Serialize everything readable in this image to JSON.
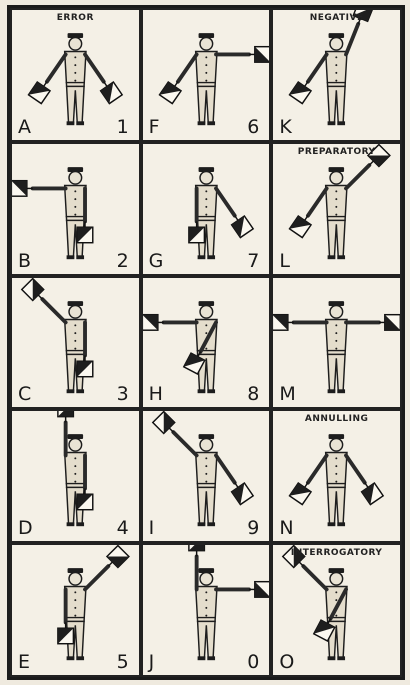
{
  "signals": [
    {
      "letter": "A",
      "number": "1",
      "caption": "ERROR",
      "flags": {
        "left": "down-left",
        "right": "down-right"
      }
    },
    {
      "letter": "F",
      "number": "6",
      "caption": "",
      "flags": {
        "left": "down-left",
        "right": "horizontal-right"
      }
    },
    {
      "letter": "K",
      "number": "",
      "caption": "NEGATIVE",
      "flags": {
        "left": "down-left",
        "right": "up-right"
      }
    },
    {
      "letter": "B",
      "number": "2",
      "caption": "",
      "flags": {
        "left": "horizontal-left",
        "right": "down"
      }
    },
    {
      "letter": "G",
      "number": "7",
      "caption": "",
      "flags": {
        "left": "down",
        "right": "down-right"
      }
    },
    {
      "letter": "L",
      "number": "",
      "caption": "PREPARATORY",
      "flags": {
        "left": "down-left",
        "right": "high-right"
      }
    },
    {
      "letter": "C",
      "number": "3",
      "caption": "",
      "flags": {
        "left": "high-left",
        "right": "down"
      }
    },
    {
      "letter": "H",
      "number": "8",
      "caption": "",
      "flags": {
        "left": "horizontal-left",
        "right": "across-down"
      }
    },
    {
      "letter": "M",
      "number": "",
      "caption": "",
      "flags": {
        "left": "horizontal-left",
        "right": "horizontal-right"
      }
    },
    {
      "letter": "D",
      "number": "4",
      "caption": "",
      "flags": {
        "left": "up",
        "right": "down"
      }
    },
    {
      "letter": "I",
      "number": "9",
      "caption": "",
      "flags": {
        "left": "high-left",
        "right": "down-right"
      }
    },
    {
      "letter": "N",
      "number": "",
      "caption": "ANNULLING",
      "flags": {
        "left": "down-left",
        "right": "down-right"
      }
    },
    {
      "letter": "E",
      "number": "5",
      "caption": "",
      "flags": {
        "left": "down",
        "right": "high-right"
      }
    },
    {
      "letter": "J",
      "number": "0",
      "caption": "",
      "flags": {
        "left": "up",
        "right": "horizontal-right"
      }
    },
    {
      "letter": "O",
      "number": "",
      "caption": "INTERROGATORY",
      "flags": {
        "left": "high-left",
        "right": "across-down"
      }
    }
  ]
}
